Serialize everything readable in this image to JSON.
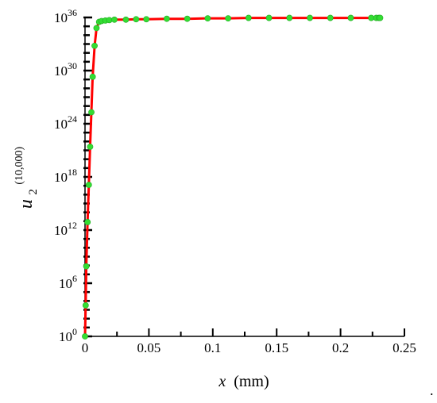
{
  "chart_data": {
    "type": "line",
    "xlabel": "x (mm)",
    "xlabel_var": "x",
    "xlabel_unit": "(mm)",
    "ylabel_var": "u",
    "ylabel_sub": "2",
    "ylabel_sup": "(10,000)",
    "xlim": [
      0,
      0.25
    ],
    "ylim_log10": [
      0,
      36
    ],
    "y_scale": "log",
    "x_ticks": [
      0,
      0.05,
      0.1,
      0.15,
      0.2,
      0.25
    ],
    "x_tick_labels": [
      "0",
      "0.05",
      "0.1",
      "0.15",
      "0.2",
      "0.25"
    ],
    "y_ticks_log10": [
      0,
      6,
      12,
      18,
      24,
      30,
      36
    ],
    "y_tick_labels": [
      {
        "base": "10",
        "exp": "0"
      },
      {
        "base": "10",
        "exp": "6"
      },
      {
        "base": "10",
        "exp": "12"
      },
      {
        "base": "10",
        "exp": "18"
      },
      {
        "base": "10",
        "exp": "24"
      },
      {
        "base": "10",
        "exp": "30"
      },
      {
        "base": "10",
        "exp": "36"
      }
    ],
    "series": [
      {
        "line_color": "#ff0000",
        "marker_color": "#33dd33",
        "x": [
          0.0,
          0.0005,
          0.001,
          0.002,
          0.003,
          0.004,
          0.005,
          0.006,
          0.0075,
          0.009,
          0.011,
          0.013,
          0.016,
          0.019,
          0.023,
          0.032,
          0.04,
          0.048,
          0.064,
          0.08,
          0.096,
          0.112,
          0.128,
          0.144,
          0.16,
          0.176,
          0.192,
          0.208,
          0.224,
          0.228,
          0.23,
          0.231
        ],
        "y_log10": [
          0.0,
          3.5,
          7.9,
          12.9,
          17.1,
          21.4,
          25.3,
          29.3,
          32.8,
          34.8,
          35.5,
          35.6,
          35.65,
          35.7,
          35.75,
          35.75,
          35.8,
          35.8,
          35.85,
          35.85,
          35.9,
          35.9,
          35.95,
          35.95,
          35.95,
          35.95,
          35.95,
          35.95,
          35.95,
          35.95,
          35.95,
          35.95
        ]
      }
    ]
  },
  "footer_mark": "."
}
